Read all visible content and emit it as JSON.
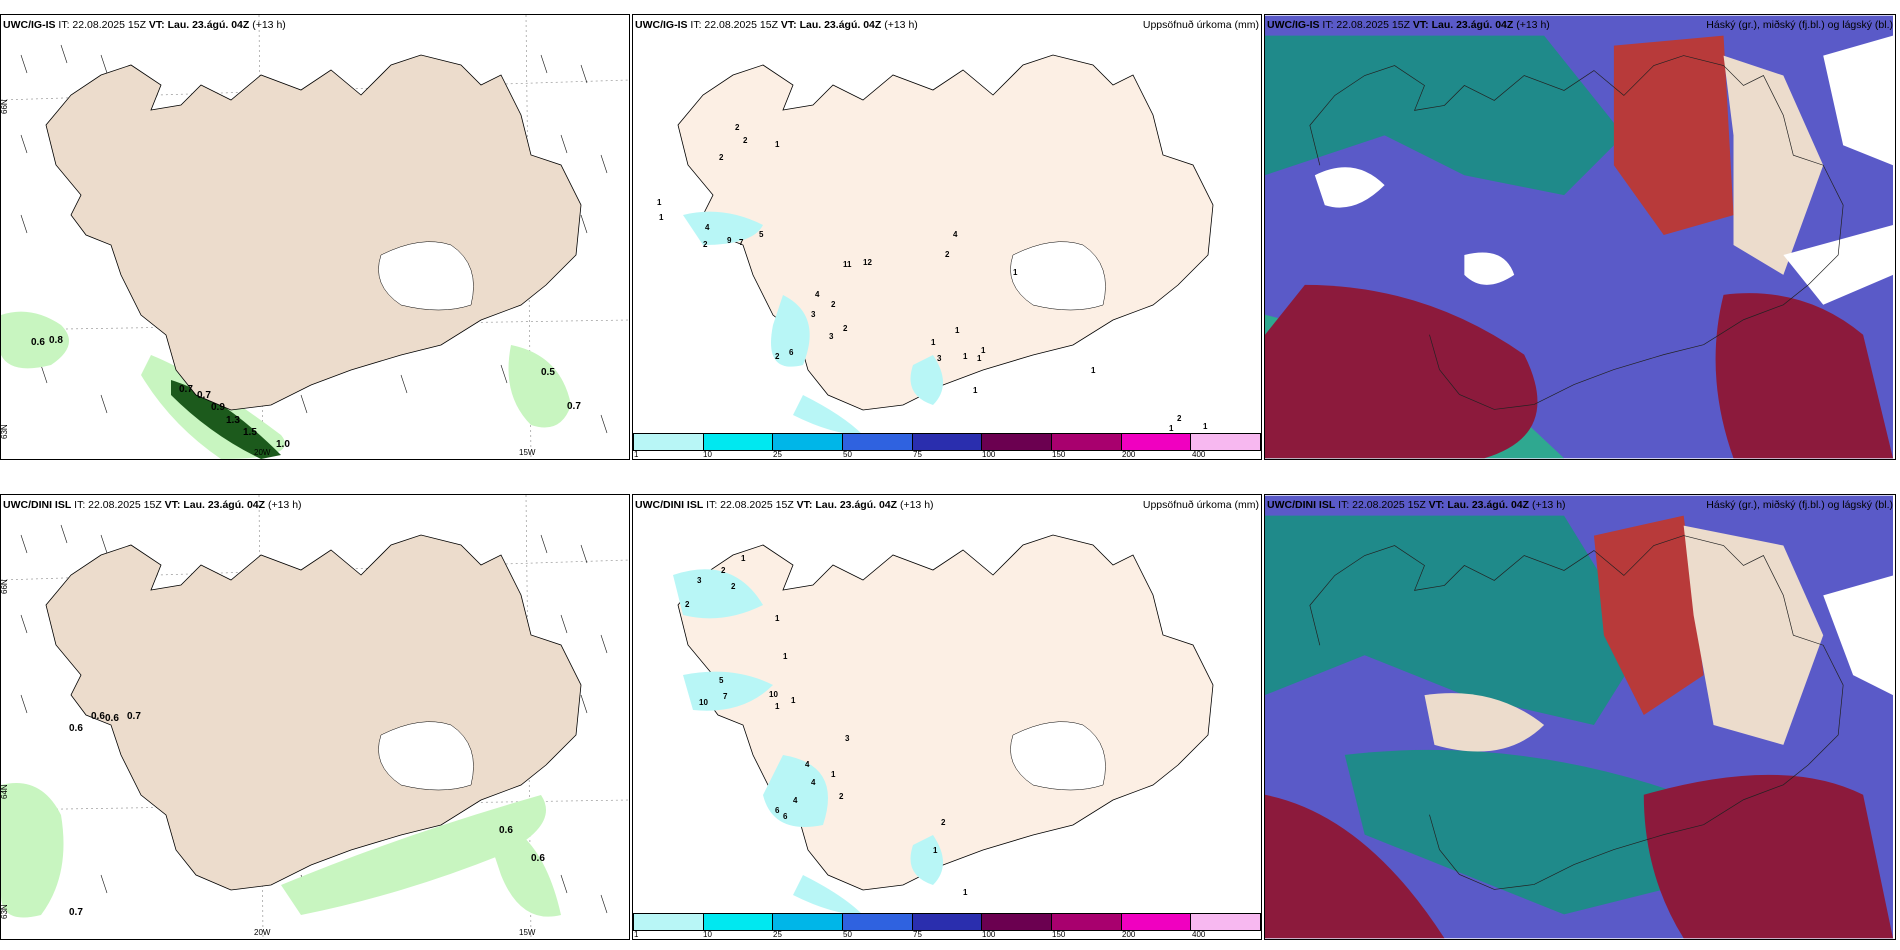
{
  "panels": [
    {
      "model": "UWC/IG-IS",
      "it": "IT: 22.08.2025 15Z",
      "vt_label": "VT:",
      "vt": "Lau. 23.ágú. 04Z",
      "lead": "(+13 h)",
      "right_title": ""
    },
    {
      "model": "UWC/IG-IS",
      "it": "IT: 22.08.2025 15Z",
      "vt_label": "VT:",
      "vt": "Lau. 23.ágú. 04Z",
      "lead": "(+13 h)",
      "right_title": "Uppsöfnuð úrkoma (mm)"
    },
    {
      "model": "UWC/IG-IS",
      "it": "IT: 22.08.2025 15Z",
      "vt_label": "VT:",
      "vt": "Lau. 23.ágú. 04Z",
      "lead": "(+13 h)",
      "right_title": "Háský (gr.), miðský (fj.bl.) og lágský (bl.)"
    },
    {
      "model": "UWC/DINI ISL",
      "it": "IT: 22.08.2025 15Z",
      "vt_label": "VT:",
      "vt": "Lau. 23.ágú. 04Z",
      "lead": "(+13 h)",
      "right_title": ""
    },
    {
      "model": "UWC/DINI ISL",
      "it": "IT: 22.08.2025 15Z",
      "vt_label": "VT:",
      "vt": "Lau. 23.ágú. 04Z",
      "lead": "(+13 h)",
      "right_title": "Uppsöfnuð úrkoma (mm)"
    },
    {
      "model": "UWC/DINI ISL",
      "it": "IT: 22.08.2025 15Z",
      "vt_label": "VT:",
      "vt": "Lau. 23.ágú. 04Z",
      "lead": "(+13 h)",
      "right_title": "Háský (gr.), miðský (fj.bl.) og lágský (bl.)"
    }
  ],
  "axis_labels": {
    "lat66": "66N",
    "lat64": "64N",
    "lat65": "65N",
    "lat63": "63N",
    "lon20": "20W",
    "lon15": "15W"
  },
  "precip_legend": {
    "labels": [
      "1",
      "10",
      "25",
      "50",
      "75",
      "100",
      "150",
      "200",
      "400"
    ],
    "colors": [
      "#b8f6f6",
      "#00e8f0",
      "#00b6e8",
      "#2f62e0",
      "#2a2eae",
      "#6b0050",
      "#a8006e",
      "#f000c0",
      "#f7b8f0"
    ]
  },
  "wind_values_top": [
    "0.6",
    "0.8",
    "0.7",
    "0.7",
    "0.9",
    "1.3",
    "1.5",
    "1.0",
    "0.5",
    "0.7"
  ],
  "wind_values_bottom": [
    "0.6",
    "0.6",
    "0.6",
    "0.7",
    "0.6",
    "0.6",
    "0.7"
  ],
  "precip_values_top": [
    "2",
    "2",
    "2",
    "1",
    "1",
    "1",
    "4",
    "2",
    "9",
    "7",
    "5",
    "11",
    "12",
    "4",
    "2",
    "1",
    "4",
    "2",
    "3",
    "3",
    "2",
    "6",
    "2",
    "1",
    "1",
    "1",
    "3",
    "1",
    "1",
    "1",
    "1",
    "2",
    "1",
    "1"
  ],
  "precip_values_bottom": [
    "1",
    "2",
    "3",
    "2",
    "2",
    "1",
    "1",
    "5",
    "10",
    "7",
    "10",
    "1",
    "1",
    "3",
    "4",
    "4",
    "4",
    "6",
    "6",
    "2",
    "1",
    "2",
    "1",
    "1"
  ],
  "colors": {
    "land": "#ecdccc",
    "precip_land": "#fcefe4",
    "light_green": "#c8f5c0",
    "mid_green": "#7ec27a",
    "dark_green": "#1c5a1c",
    "cloud_blue": "#5a5ac8",
    "cloud_teal": "#1f8a8a",
    "cloud_red": "#8c1a3c"
  }
}
